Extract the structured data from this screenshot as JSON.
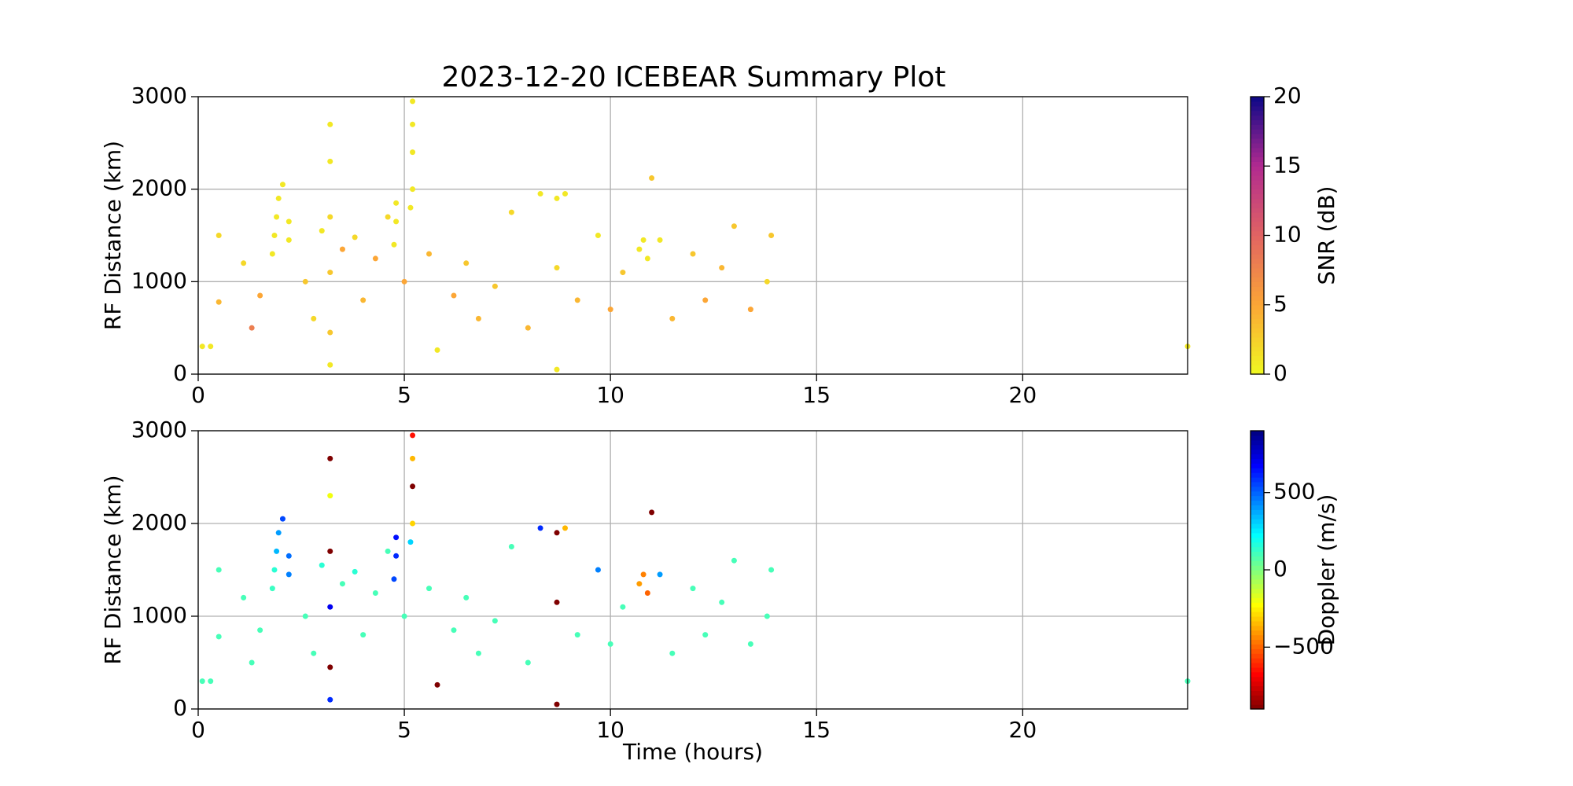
{
  "chart_data": [
    {
      "type": "scatter",
      "title": "2023-12-20 ICEBEAR Summary Plot",
      "ylabel": "RF Distance (km)",
      "xlim": [
        0,
        24
      ],
      "xticks": [
        0,
        5,
        10,
        15,
        20
      ],
      "ylim": [
        0,
        3000
      ],
      "yticks": [
        0,
        1000,
        2000,
        3000
      ],
      "grid": true,
      "x": [
        0.1,
        0.3,
        0.5,
        0.5,
        1.1,
        1.3,
        1.5,
        1.8,
        1.85,
        1.9,
        1.95,
        2.05,
        2.2,
        2.2,
        2.6,
        2.8,
        3.0,
        3.2,
        3.2,
        3.2,
        3.2,
        3.2,
        3.2,
        3.5,
        3.8,
        4.0,
        4.3,
        4.6,
        4.75,
        4.8,
        4.8,
        5.0,
        5.15,
        5.2,
        5.2,
        5.2,
        5.2,
        5.6,
        5.8,
        6.2,
        6.5,
        6.8,
        7.2,
        7.6,
        8.0,
        8.3,
        8.7,
        8.7,
        8.7,
        8.9,
        9.2,
        9.7,
        10.0,
        10.3,
        10.7,
        10.8,
        10.9,
        11.0,
        11.2,
        11.5,
        12.0,
        12.3,
        12.7,
        13.0,
        13.4,
        13.8,
        13.9,
        24.0
      ],
      "values": [
        300,
        300,
        780,
        1500,
        1200,
        500,
        850,
        1300,
        1500,
        1700,
        1900,
        2050,
        1450,
        1650,
        1000,
        600,
        1550,
        100,
        450,
        1100,
        1700,
        2300,
        2700,
        1350,
        1480,
        800,
        1250,
        1700,
        1400,
        1650,
        1850,
        1000,
        1800,
        2000,
        2400,
        2700,
        2950,
        1300,
        260,
        850,
        1200,
        600,
        950,
        1750,
        500,
        1950,
        50,
        1150,
        1900,
        1950,
        800,
        1500,
        700,
        1100,
        1350,
        1450,
        1250,
        2120,
        1450,
        600,
        1300,
        800,
        1150,
        1600,
        700,
        1000,
        1500,
        300
      ],
      "color_values": [
        1,
        1,
        4,
        2,
        2,
        8,
        5,
        1,
        1,
        1,
        1,
        1,
        1,
        1,
        3,
        2,
        1,
        1,
        3,
        3,
        2,
        1,
        1,
        5,
        2,
        4,
        5,
        2,
        1,
        1,
        1,
        5,
        1,
        1,
        1,
        1,
        1,
        4,
        1,
        5,
        3,
        4,
        3,
        2,
        4,
        1,
        1,
        2,
        1,
        1,
        4,
        1,
        5,
        3,
        1,
        1,
        1,
        3,
        1,
        4,
        3,
        5,
        4,
        3,
        5,
        2,
        3,
        1
      ],
      "colorbar": {
        "label": "SNR (dB)",
        "lim": [
          0,
          20
        ],
        "ticks": [
          0,
          5,
          10,
          15,
          20
        ],
        "colormap": "plasma_r"
      }
    },
    {
      "type": "scatter",
      "ylabel": "RF Distance (km)",
      "xlabel": "Time (hours)",
      "xlim": [
        0,
        24
      ],
      "xticks": [
        0,
        5,
        10,
        15,
        20
      ],
      "ylim": [
        0,
        3000
      ],
      "yticks": [
        0,
        1000,
        2000,
        3000
      ],
      "grid": true,
      "x": [
        0.1,
        0.3,
        0.5,
        0.5,
        1.1,
        1.3,
        1.5,
        1.8,
        1.85,
        1.9,
        1.95,
        2.05,
        2.2,
        2.2,
        2.6,
        2.8,
        3.0,
        3.2,
        3.2,
        3.2,
        3.2,
        3.2,
        3.2,
        3.5,
        3.8,
        4.0,
        4.3,
        4.6,
        4.75,
        4.8,
        4.8,
        5.0,
        5.15,
        5.2,
        5.2,
        5.2,
        5.2,
        5.6,
        5.8,
        6.2,
        6.5,
        6.8,
        7.2,
        7.6,
        8.0,
        8.3,
        8.7,
        8.7,
        8.7,
        8.9,
        9.2,
        9.7,
        10.0,
        10.3,
        10.7,
        10.8,
        10.9,
        11.0,
        11.2,
        11.5,
        12.0,
        12.3,
        12.7,
        13.0,
        13.4,
        13.8,
        13.9,
        24.0
      ],
      "values": [
        300,
        300,
        780,
        1500,
        1200,
        500,
        850,
        1300,
        1500,
        1700,
        1900,
        2050,
        1450,
        1650,
        1000,
        600,
        1550,
        100,
        450,
        1100,
        1700,
        2300,
        2700,
        1350,
        1480,
        800,
        1250,
        1700,
        1400,
        1650,
        1850,
        1000,
        1800,
        2000,
        2400,
        2700,
        2950,
        1300,
        260,
        850,
        1200,
        600,
        950,
        1750,
        500,
        1950,
        50,
        1150,
        1900,
        1950,
        800,
        1500,
        700,
        1100,
        1350,
        1450,
        1250,
        2120,
        1450,
        600,
        1300,
        800,
        1150,
        1600,
        700,
        1000,
        1500,
        300
      ],
      "color_values": [
        100,
        100,
        100,
        100,
        100,
        100,
        100,
        120,
        150,
        350,
        400,
        550,
        450,
        480,
        100,
        100,
        150,
        600,
        -900,
        700,
        -900,
        -200,
        -900,
        100,
        150,
        100,
        100,
        100,
        550,
        600,
        650,
        100,
        300,
        -300,
        -900,
        -350,
        -650,
        100,
        -900,
        100,
        100,
        100,
        100,
        100,
        100,
        600,
        -900,
        -900,
        -900,
        -350,
        100,
        450,
        100,
        100,
        -400,
        -450,
        -500,
        -900,
        400,
        100,
        100,
        100,
        100,
        100,
        100,
        100,
        100,
        100
      ],
      "colorbar": {
        "label": "Doppler (m/s)",
        "lim": [
          -900,
          900
        ],
        "ticks": [
          {
            "value": -500,
            "label": "−500"
          },
          0,
          500
        ],
        "colormap": "jet_r"
      }
    }
  ]
}
